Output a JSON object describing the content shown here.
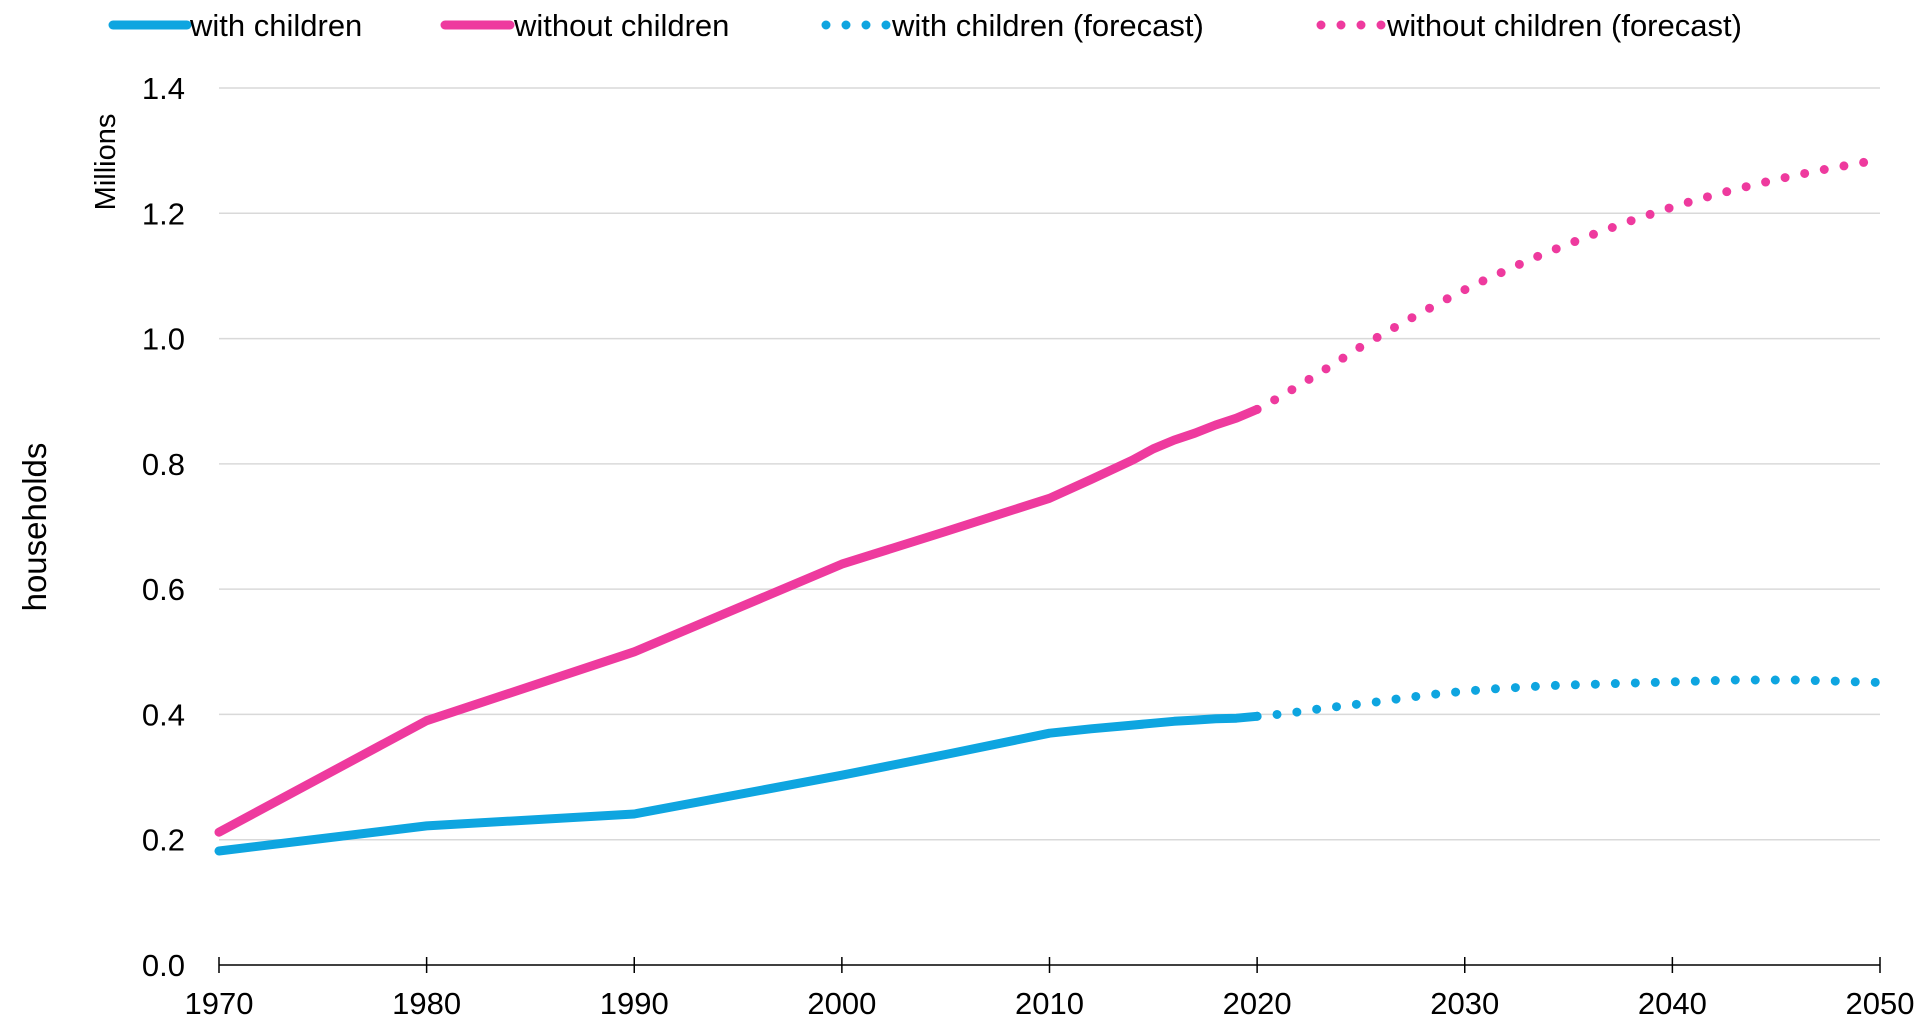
{
  "chart_data": {
    "type": "line",
    "ylabel": "households",
    "y_units": "Millions",
    "ylim": [
      0,
      1.4
    ],
    "y_ticks": [
      "0.0",
      "0.2",
      "0.4",
      "0.6",
      "0.8",
      "1.0",
      "1.2",
      "1.4"
    ],
    "xlim": [
      1970,
      2050
    ],
    "x_ticks": [
      "1970",
      "1980",
      "1990",
      "2000",
      "2010",
      "2020",
      "2030",
      "2040",
      "2050"
    ],
    "grid": "horizontal",
    "legend_position": "top",
    "series": [
      {
        "name": "with children",
        "color": "#0ea5e0",
        "style": "solid",
        "points": [
          [
            1970,
            0.182
          ],
          [
            1980,
            0.222
          ],
          [
            1990,
            0.241
          ],
          [
            2000,
            0.303
          ],
          [
            2005,
            0.336
          ],
          [
            2010,
            0.37
          ],
          [
            2012,
            0.377
          ],
          [
            2014,
            0.383
          ],
          [
            2015,
            0.386
          ],
          [
            2016,
            0.389
          ],
          [
            2017,
            0.391
          ],
          [
            2018,
            0.393
          ],
          [
            2019,
            0.394
          ],
          [
            2020,
            0.397
          ]
        ]
      },
      {
        "name": "without children",
        "color": "#ee3a9e",
        "style": "solid",
        "points": [
          [
            1970,
            0.212
          ],
          [
            1980,
            0.39
          ],
          [
            1990,
            0.5
          ],
          [
            2000,
            0.64
          ],
          [
            2005,
            0.692
          ],
          [
            2010,
            0.745
          ],
          [
            2012,
            0.775
          ],
          [
            2014,
            0.806
          ],
          [
            2015,
            0.824
          ],
          [
            2016,
            0.838
          ],
          [
            2017,
            0.849
          ],
          [
            2018,
            0.862
          ],
          [
            2019,
            0.873
          ],
          [
            2020,
            0.887
          ]
        ]
      },
      {
        "name": "with children (forecast)",
        "color": "#0ea5e0",
        "style": "dotted",
        "points": [
          [
            2020,
            0.397
          ],
          [
            2021,
            0.4
          ],
          [
            2022,
            0.404
          ],
          [
            2023,
            0.409
          ],
          [
            2024,
            0.413
          ],
          [
            2025,
            0.417
          ],
          [
            2026,
            0.421
          ],
          [
            2027,
            0.426
          ],
          [
            2028,
            0.43
          ],
          [
            2029,
            0.434
          ],
          [
            2030,
            0.437
          ],
          [
            2031,
            0.44
          ],
          [
            2032,
            0.442
          ],
          [
            2033,
            0.444
          ],
          [
            2034,
            0.446
          ],
          [
            2035,
            0.447
          ],
          [
            2036,
            0.448
          ],
          [
            2037,
            0.449
          ],
          [
            2038,
            0.45
          ],
          [
            2039,
            0.451
          ],
          [
            2040,
            0.452
          ],
          [
            2041,
            0.453
          ],
          [
            2042,
            0.454
          ],
          [
            2043,
            0.455
          ],
          [
            2044,
            0.455
          ],
          [
            2045,
            0.455
          ],
          [
            2046,
            0.455
          ],
          [
            2047,
            0.454
          ],
          [
            2048,
            0.453
          ],
          [
            2049,
            0.452
          ],
          [
            2050,
            0.451
          ]
        ]
      },
      {
        "name": "without children (forecast)",
        "color": "#ee3a9e",
        "style": "dotted",
        "points": [
          [
            2020,
            0.887
          ],
          [
            2021,
            0.905
          ],
          [
            2022,
            0.925
          ],
          [
            2023,
            0.945
          ],
          [
            2024,
            0.966
          ],
          [
            2025,
            0.987
          ],
          [
            2026,
            1.006
          ],
          [
            2027,
            1.025
          ],
          [
            2028,
            1.043
          ],
          [
            2029,
            1.061
          ],
          [
            2030,
            1.078
          ],
          [
            2031,
            1.094
          ],
          [
            2032,
            1.109
          ],
          [
            2033,
            1.124
          ],
          [
            2034,
            1.138
          ],
          [
            2035,
            1.151
          ],
          [
            2036,
            1.164
          ],
          [
            2037,
            1.176
          ],
          [
            2038,
            1.188
          ],
          [
            2039,
            1.199
          ],
          [
            2040,
            1.21
          ],
          [
            2041,
            1.22
          ],
          [
            2042,
            1.229
          ],
          [
            2043,
            1.238
          ],
          [
            2044,
            1.246
          ],
          [
            2045,
            1.254
          ],
          [
            2046,
            1.261
          ],
          [
            2047,
            1.268
          ],
          [
            2048,
            1.274
          ],
          [
            2049,
            1.28
          ],
          [
            2050,
            1.286
          ]
        ]
      }
    ]
  }
}
